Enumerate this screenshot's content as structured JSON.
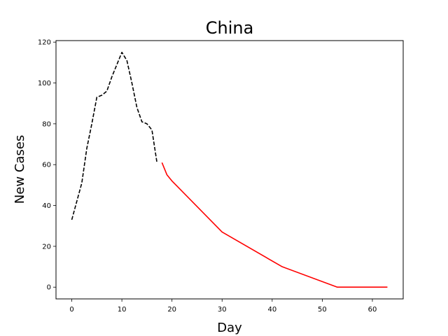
{
  "chart_data": {
    "type": "line",
    "title": "China",
    "xlabel": "Day",
    "ylabel": "New Cases",
    "xlim": [
      -3.15,
      66.15
    ],
    "ylim": [
      -5.75,
      120.75
    ],
    "xticks": [
      0,
      10,
      20,
      30,
      40,
      50,
      60
    ],
    "yticks": [
      0,
      20,
      40,
      60,
      80,
      100,
      120
    ],
    "grid": false,
    "series": [
      {
        "style": "dashed",
        "color": "#000000",
        "x": [
          0,
          1,
          2,
          3,
          4,
          5,
          6,
          7,
          8,
          9,
          10,
          11,
          12,
          13,
          14,
          15,
          16,
          17
        ],
        "y": [
          33,
          42,
          51,
          68,
          80,
          93,
          94,
          96,
          103,
          109,
          115,
          111,
          100,
          88,
          81,
          80,
          77,
          61
        ]
      },
      {
        "style": "solid",
        "color": "#ff0000",
        "x": [
          18,
          19,
          20,
          30,
          42,
          53,
          63
        ],
        "y": [
          61,
          55,
          52,
          27,
          10,
          0,
          0
        ]
      }
    ]
  }
}
